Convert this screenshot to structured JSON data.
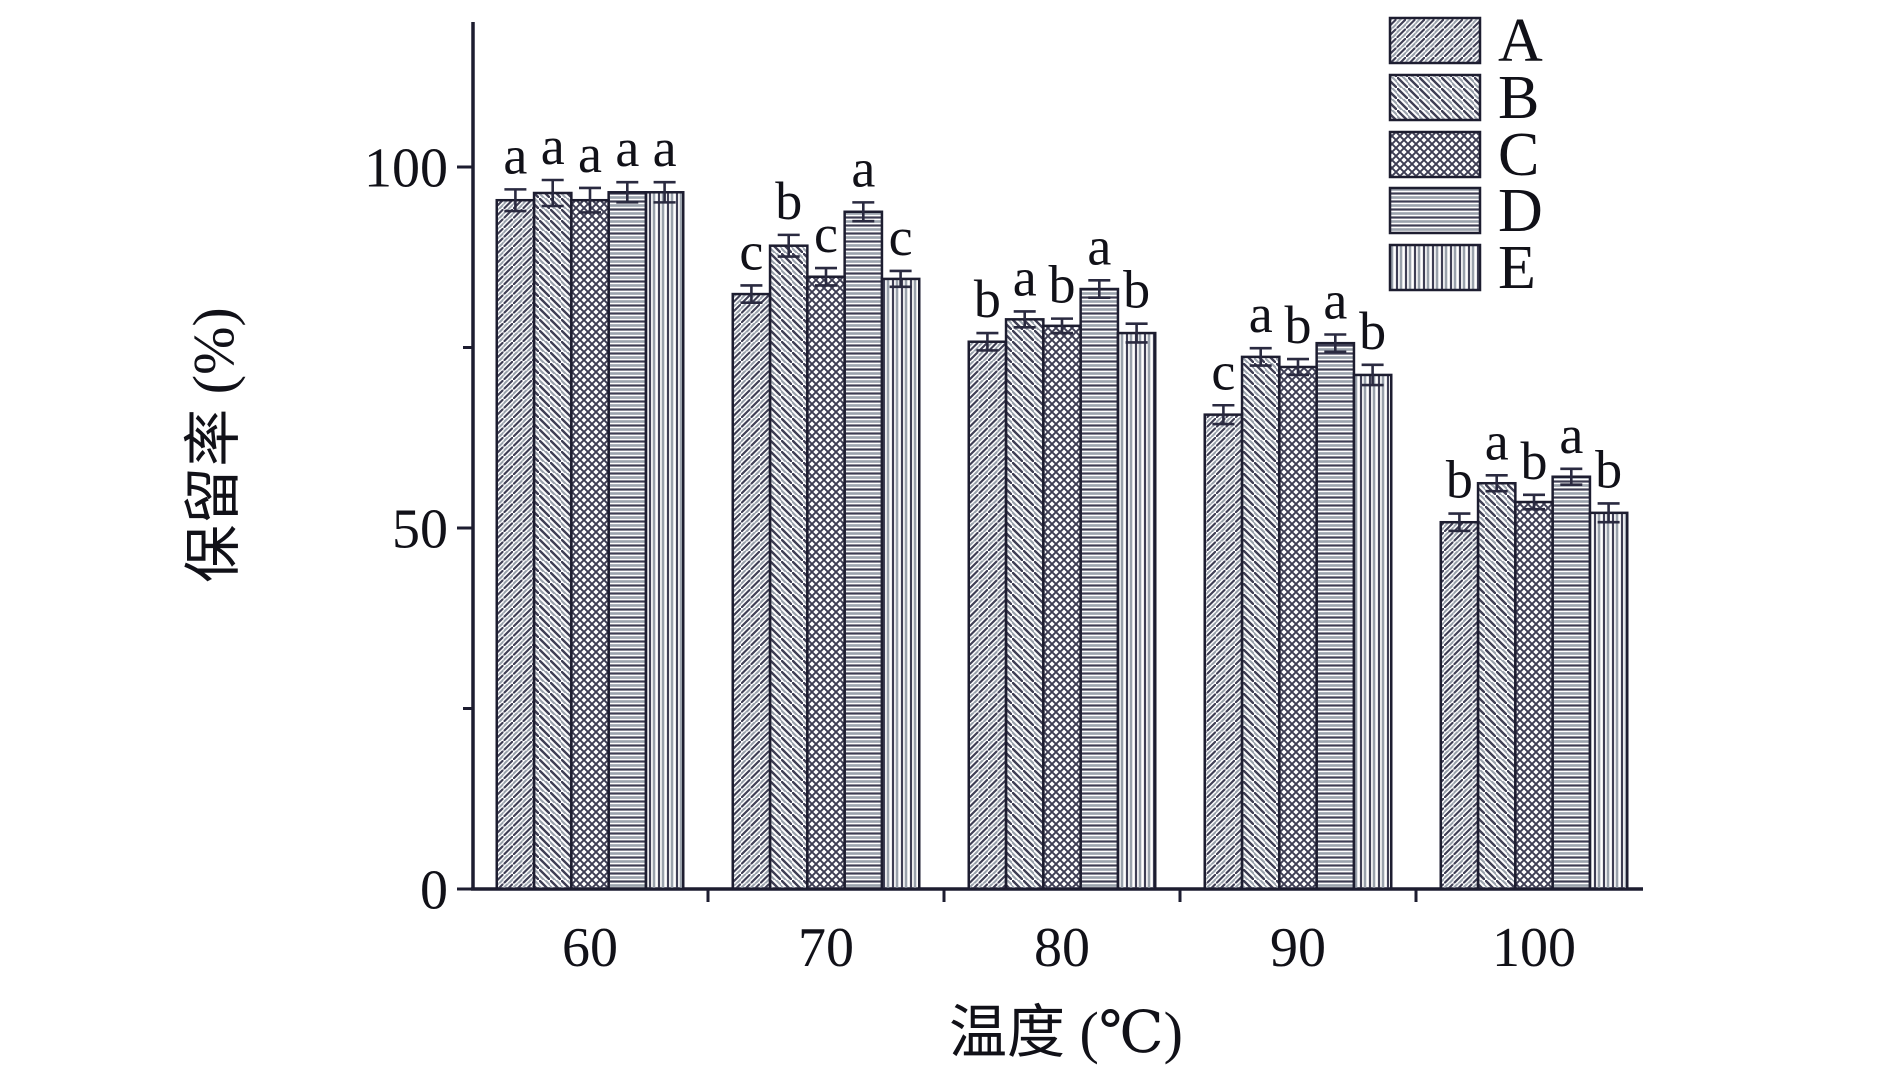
{
  "chart_data": {
    "type": "bar",
    "title": "",
    "xlabel": "温度 (℃)",
    "ylabel": "保留率 (%)",
    "categories": [
      "60",
      "70",
      "80",
      "90",
      "100"
    ],
    "series": [
      {
        "name": "A",
        "pattern": "diagonal-forward",
        "values": [
          95.4,
          82.4,
          75.8,
          65.7,
          50.8
        ],
        "errors": [
          1.5,
          1.2,
          1.2,
          1.3,
          1.2
        ],
        "sig_letters": [
          "a",
          "c",
          "b",
          "c",
          "b"
        ]
      },
      {
        "name": "B",
        "pattern": "diagonal-back",
        "values": [
          96.4,
          89.1,
          78.9,
          73.7,
          56.2
        ],
        "errors": [
          1.8,
          1.5,
          1.1,
          1.2,
          1.1
        ],
        "sig_letters": [
          "a",
          "b",
          "a",
          "a",
          "a"
        ]
      },
      {
        "name": "C",
        "pattern": "crosshatch",
        "values": [
          95.4,
          84.8,
          78.0,
          72.3,
          53.6
        ],
        "errors": [
          1.7,
          1.2,
          1.0,
          1.1,
          1.0
        ],
        "sig_letters": [
          "a",
          "c",
          "b",
          "b",
          "b"
        ]
      },
      {
        "name": "D",
        "pattern": "horizontal-lines",
        "values": [
          96.5,
          93.8,
          83.1,
          75.6,
          57.1
        ],
        "errors": [
          1.4,
          1.3,
          1.2,
          1.2,
          1.1
        ],
        "sig_letters": [
          "a",
          "a",
          "a",
          "a",
          "a"
        ]
      },
      {
        "name": "E",
        "pattern": "vertical-lines",
        "values": [
          96.5,
          84.5,
          77.0,
          71.2,
          52.1
        ],
        "errors": [
          1.4,
          1.1,
          1.3,
          1.4,
          1.3
        ],
        "sig_letters": [
          "a",
          "c",
          "b",
          "b",
          "b"
        ]
      }
    ],
    "y_ticks": [
      0,
      50,
      100
    ],
    "y_minor_ticks": [
      25,
      75
    ],
    "ylim": [
      0,
      121
    ],
    "grid": false,
    "legend_position": "top-right",
    "error_bars": true
  },
  "colors": {
    "ink": "#1d1d30",
    "hatch_dark": "#3e3e54",
    "hatch_gray": "#9aa2ac",
    "background": "#ffffff"
  }
}
